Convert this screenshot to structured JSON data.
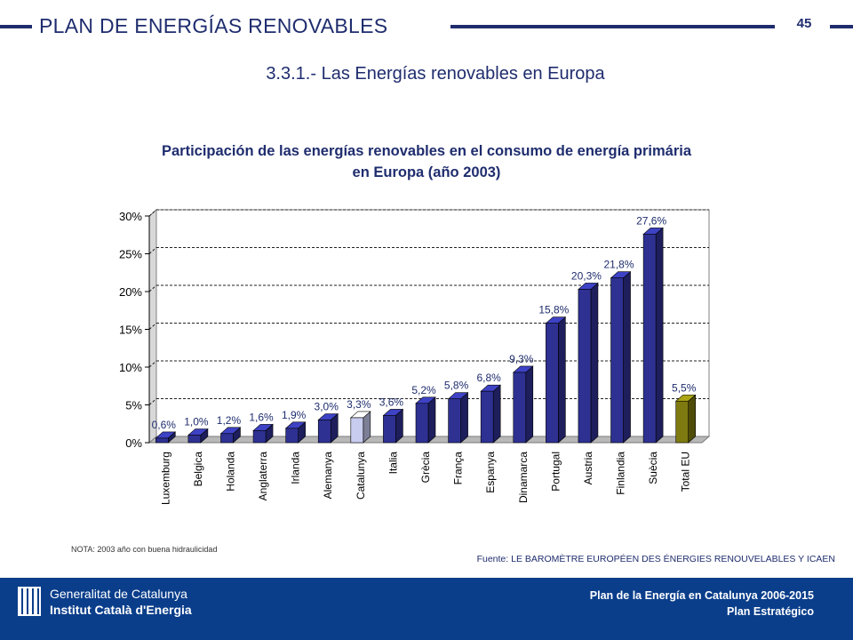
{
  "header": {
    "title": "PLAN DE ENERGÍAS RENOVABLES",
    "page_number": "45",
    "subtitle": "3.3.1.- Las Energías renovables en Europa"
  },
  "chart_title": {
    "line1": "Participación de las energías renovables en el consumo de energía primária",
    "line2": "en Europa (año 2003)"
  },
  "chart_data": {
    "type": "bar",
    "title": "Participación de las energías renovables en el consumo de energía primária en Europa (año 2003)",
    "xlabel": "",
    "ylabel": "",
    "ylim": [
      0,
      30
    ],
    "yticks": [
      "0%",
      "5%",
      "10%",
      "15%",
      "20%",
      "25%",
      "30%"
    ],
    "grid": true,
    "categories": [
      "Luxemburg",
      "Belgica",
      "Holanda",
      "Anglaterra",
      "Irlanda",
      "Alemanya",
      "Catalunya",
      "Italia",
      "Grècia",
      "França",
      "Espanya",
      "Dinamarca",
      "Portugal",
      "Austria",
      "Finlandia",
      "Suècia",
      "Total EU"
    ],
    "values": [
      0.6,
      1.0,
      1.2,
      1.6,
      1.9,
      3.0,
      3.3,
      3.6,
      5.2,
      5.8,
      6.8,
      9.3,
      15.8,
      20.3,
      21.8,
      27.6,
      5.5
    ],
    "labels": [
      "0,6%",
      "1,0%",
      "1,2%",
      "1,6%",
      "1,9%",
      "3,0%",
      "3,3%",
      "3,6%",
      "5,2%",
      "5,8%",
      "6,8%",
      "9,3%",
      "15,8%",
      "20,3%",
      "21,8%",
      "27,6%",
      "5,5%"
    ],
    "colors": {
      "default": "#2e3192",
      "Catalunya": "#c8cdf0",
      "Total EU": "#7f7a10"
    }
  },
  "note": "NOTA: 2003 año con buena hidraulicidad",
  "source": "Fuente: LE BAROMÈTRE EUROPÉEN DES ÉNERGIES RENOUVELABLES Y ICAEN",
  "footer": {
    "org_line1": "Generalitat de Catalunya",
    "org_line2": "Institut Català d'Energia",
    "plan_line1": "Plan de la Energía en Catalunya 2006-2015",
    "plan_line2": "Plan Estratégico"
  },
  "theme": {
    "primary": "#1f2d6e",
    "footer_bg": "#0a3e8b"
  }
}
